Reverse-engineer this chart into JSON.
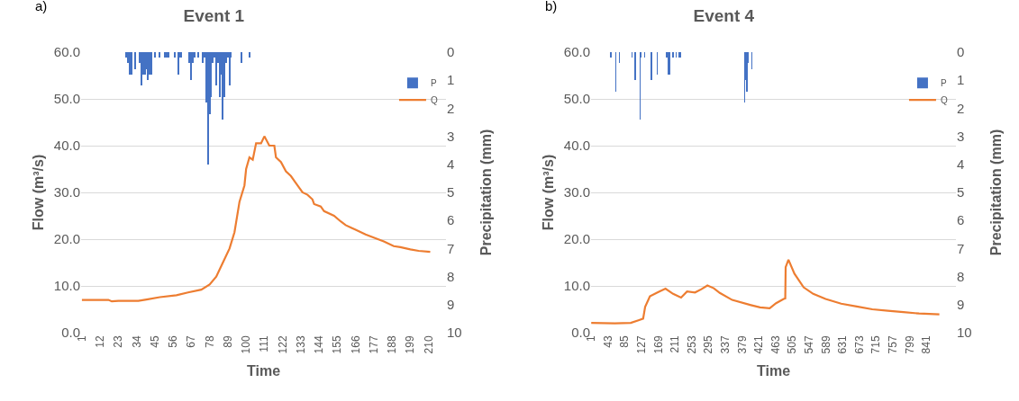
{
  "chart_data": [
    {
      "type": "line",
      "title": "Event 1",
      "xlabel": "Time",
      "ylabel": "Flow (m³/s)",
      "y2label": "Precipitation (mm)",
      "annotations": [
        "a)"
      ],
      "xlim": [
        0.5,
        220.5
      ],
      "xticks": [
        1,
        12,
        23,
        34,
        45,
        56,
        67,
        78,
        89,
        100,
        111,
        122,
        133,
        144,
        155,
        166,
        177,
        188,
        199,
        210
      ],
      "ylim": [
        0,
        60
      ],
      "yticks": [
        {
          "value": 0,
          "label": "0.0"
        },
        {
          "value": 10,
          "label": "10.0"
        },
        {
          "value": 20,
          "label": "20.0"
        },
        {
          "value": 30,
          "label": "30.0"
        },
        {
          "value": 40,
          "label": "40.0"
        },
        {
          "value": 50,
          "label": "50.0"
        },
        {
          "value": 60,
          "label": "60.0"
        }
      ],
      "y2lim": [
        10,
        0
      ],
      "y2ticks": [
        0,
        1,
        2,
        3,
        4,
        5,
        6,
        7,
        8,
        9,
        10
      ],
      "grid": "y",
      "legend": "top right",
      "marker": "none",
      "line_style": "solid",
      "series": [
        {
          "name": "P",
          "type": "bar",
          "axis": "y2",
          "color": "#4472c4",
          "x": [
            28,
            29,
            30,
            31,
            33,
            36,
            37,
            38,
            39,
            40,
            41,
            42,
            43,
            45,
            48,
            51,
            52,
            53,
            57,
            59,
            60,
            61,
            66,
            67,
            68,
            69,
            71,
            74,
            75,
            76,
            77,
            78,
            79,
            80,
            81,
            82,
            83,
            84,
            85,
            86,
            87,
            88,
            89,
            90,
            91,
            97,
            102
          ],
          "values": [
            0.2,
            0.4,
            0.8,
            0.8,
            0.6,
            0.4,
            1.2,
            0.8,
            0.8,
            0.6,
            1.0,
            0.8,
            0.8,
            0.2,
            0.2,
            0.2,
            0.2,
            0.2,
            0.2,
            0.8,
            0.2,
            0.2,
            0.4,
            1.0,
            0.4,
            0.2,
            0.2,
            0.4,
            0.2,
            1.8,
            4.0,
            2.2,
            1.6,
            0.4,
            0.2,
            1.2,
            0.4,
            1.6,
            0.8,
            2.4,
            1.6,
            0.4,
            0.2,
            1.2,
            0.2,
            0.4,
            0.2
          ]
        },
        {
          "name": "Q",
          "color": "#ed7d31",
          "x": [
            1,
            17,
            19,
            23,
            35,
            40,
            48,
            58,
            65,
            73,
            78,
            82,
            86,
            90,
            93,
            96,
            99,
            100,
            102,
            104,
            106,
            109,
            111,
            114,
            117,
            118,
            121,
            124,
            127,
            130,
            134,
            137,
            140,
            141,
            145,
            147,
            153,
            157,
            160,
            166,
            172,
            178,
            183,
            189,
            193,
            199,
            204,
            211
          ],
          "values": [
            7.0,
            7.0,
            6.7,
            6.8,
            6.8,
            7.1,
            7.6,
            8.0,
            8.6,
            9.2,
            10.3,
            12.0,
            15.0,
            18.0,
            21.5,
            28.0,
            31.5,
            35.0,
            37.5,
            37.0,
            40.5,
            40.5,
            42.0,
            40.0,
            40.0,
            37.5,
            36.5,
            34.5,
            33.5,
            32.0,
            30.0,
            29.5,
            28.5,
            27.5,
            27.0,
            26.0,
            25.0,
            23.8,
            23.0,
            22.0,
            21.0,
            20.2,
            19.5,
            18.5,
            18.3,
            17.8,
            17.5,
            17.3
          ]
        }
      ]
    },
    {
      "type": "line",
      "title": "Event 4",
      "xlabel": "Time",
      "ylabel": "Flow (m³/s)",
      "y2label": "Precipitation (mm)",
      "annotations": [
        "b)"
      ],
      "xlim": [
        0.5,
        914.5
      ],
      "xticks": [
        1,
        43,
        85,
        127,
        169,
        211,
        253,
        295,
        337,
        379,
        421,
        463,
        505,
        547,
        589,
        631,
        673,
        715,
        757,
        799,
        841
      ],
      "ylim": [
        0,
        60
      ],
      "yticks": [
        {
          "value": 0,
          "label": "0.0"
        },
        {
          "value": 10,
          "label": "10.0"
        },
        {
          "value": 20,
          "label": "20.0"
        },
        {
          "value": 30,
          "label": "30.0"
        },
        {
          "value": 40,
          "label": "40.0"
        },
        {
          "value": 50,
          "label": "50.0"
        },
        {
          "value": 60,
          "label": "60.0"
        }
      ],
      "y2lim": [
        10,
        0
      ],
      "y2ticks": [
        0,
        1,
        2,
        3,
        4,
        5,
        6,
        7,
        8,
        9,
        10
      ],
      "grid": "y",
      "legend": "top right",
      "marker": "none",
      "line_style": "solid",
      "series": [
        {
          "name": "P",
          "type": "bar",
          "axis": "y2",
          "color": "#4472c4",
          "x": [
            50,
            62,
            72,
            103,
            111,
            123,
            125,
            135,
            152,
            166,
            190,
            193,
            197,
            206,
            214,
            220,
            224,
            386,
            388,
            391,
            395,
            404
          ],
          "values": [
            0.2,
            1.4,
            0.4,
            0.2,
            1.0,
            2.4,
            0.2,
            0.2,
            1.0,
            0.8,
            0.2,
            0.8,
            0.8,
            0.2,
            0.2,
            0.2,
            0.2,
            1.8,
            1.0,
            1.4,
            0.4,
            0.6
          ]
        },
        {
          "name": "Q",
          "color": "#ed7d31",
          "x": [
            1,
            60,
            100,
            121,
            131,
            136,
            148,
            167,
            187,
            206,
            226,
            241,
            261,
            277,
            292,
            308,
            323,
            354,
            401,
            424,
            448,
            464,
            483,
            487,
            488,
            495,
            510,
            533,
            557,
            588,
            627,
            666,
            705,
            744,
            783,
            822,
            873
          ],
          "values": [
            2.1,
            2.0,
            2.1,
            2.7,
            3.0,
            5.5,
            7.8,
            8.6,
            9.4,
            8.3,
            7.5,
            8.8,
            8.6,
            9.3,
            10.1,
            9.5,
            8.5,
            7.0,
            5.9,
            5.4,
            5.2,
            6.3,
            7.2,
            7.3,
            14.0,
            15.6,
            12.6,
            9.7,
            8.3,
            7.2,
            6.2,
            5.6,
            5.0,
            4.7,
            4.4,
            4.1,
            3.9
          ]
        }
      ]
    }
  ]
}
